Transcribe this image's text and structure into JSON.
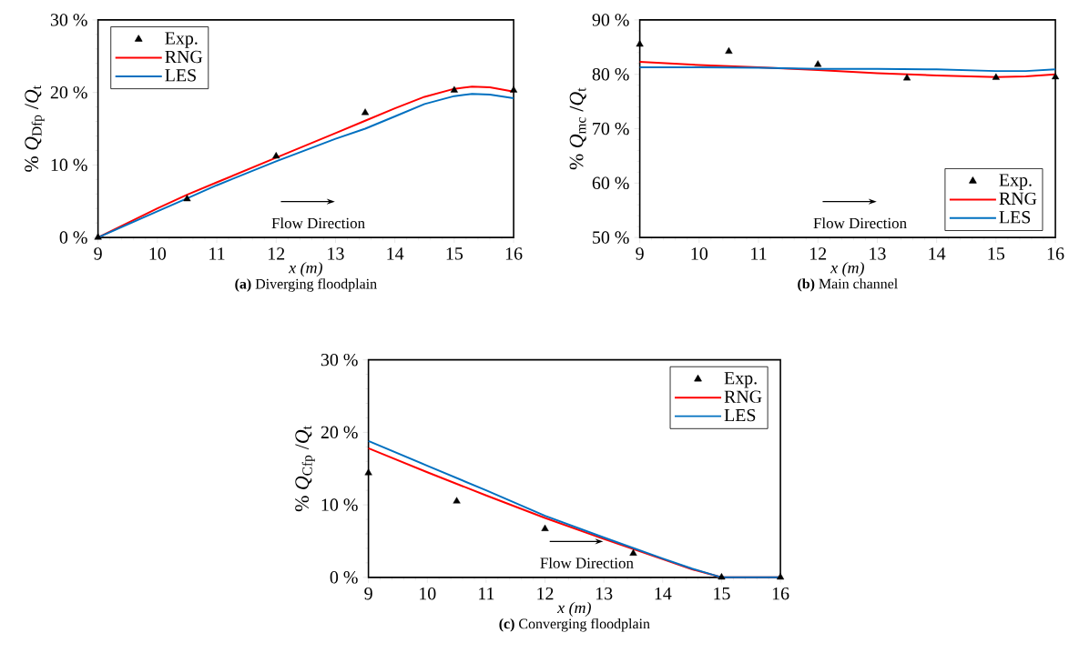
{
  "chart_data": [
    {
      "type": "line",
      "title": "**(a)** Diverging floodplain",
      "xlabel": "x (m)",
      "ylabel": "% *Q*$_{Dfp}$ /*Q*$_{t}$",
      "annotations": [
        "Flow Direction"
      ],
      "legend": "top left",
      "xlim": [
        9,
        16
      ],
      "xticks": [
        9,
        10,
        11,
        12,
        13,
        14,
        15,
        16
      ],
      "ylim": [
        0,
        30
      ],
      "yticks": [
        {
          "value": 0,
          "label": "0 %"
        },
        {
          "value": 10,
          "label": "10 %"
        },
        {
          "value": 20,
          "label": "20 %"
        },
        {
          "value": 30,
          "label": "30 %"
        }
      ],
      "series": [
        {
          "name": "Exp.",
          "type": "scatter",
          "marker": "triangle",
          "color": "#000000",
          "x": [
            9,
            10.5,
            12,
            13.5,
            15,
            16
          ],
          "values": [
            0,
            5.3,
            11.2,
            17.2,
            20.3,
            20.3
          ]
        },
        {
          "name": "RNG",
          "type": "line",
          "color": "#ff0000",
          "x": [
            9,
            10,
            10.5,
            11,
            12,
            13,
            13.5,
            14,
            14.5,
            15,
            15.3,
            15.6,
            16
          ],
          "values": [
            0,
            4,
            5.9,
            7.6,
            11,
            14.4,
            16.1,
            17.8,
            19.4,
            20.5,
            20.8,
            20.7,
            20.1
          ]
        },
        {
          "name": "LES",
          "type": "line",
          "color": "#0070c0",
          "x": [
            9,
            10,
            10.5,
            11,
            12,
            13,
            13.5,
            14,
            14.5,
            15,
            15.3,
            15.6,
            16
          ],
          "values": [
            0,
            3.6,
            5.4,
            7.2,
            10.5,
            13.6,
            15.0,
            16.7,
            18.4,
            19.5,
            19.8,
            19.7,
            19.2
          ]
        }
      ]
    },
    {
      "type": "line",
      "title": "**(b)** Main channel",
      "xlabel": "x (m)",
      "ylabel": "% *Q*$_{mc}$ /*Q*$_{t}$",
      "annotations": [
        "Flow Direction"
      ],
      "legend": "bottom right",
      "xlim": [
        9,
        16
      ],
      "xticks": [
        9,
        10,
        11,
        12,
        13,
        14,
        15,
        16
      ],
      "ylim": [
        50,
        90
      ],
      "yticks": [
        {
          "value": 50,
          "label": "50 %"
        },
        {
          "value": 60,
          "label": "60 %"
        },
        {
          "value": 70,
          "label": "70 %"
        },
        {
          "value": 80,
          "label": "80 %"
        },
        {
          "value": 90,
          "label": "90 %"
        }
      ],
      "series": [
        {
          "name": "Exp.",
          "type": "scatter",
          "marker": "triangle",
          "color": "#000000",
          "x": [
            9,
            10.5,
            12,
            13.5,
            15,
            16
          ],
          "values": [
            85.5,
            84.2,
            81.8,
            79.3,
            79.4,
            79.5
          ]
        },
        {
          "name": "RNG",
          "type": "line",
          "color": "#ff0000",
          "x": [
            9,
            10,
            11,
            12,
            13,
            14,
            15,
            15.5,
            16
          ],
          "values": [
            82.3,
            81.7,
            81.3,
            80.8,
            80.2,
            79.8,
            79.5,
            79.6,
            80.0
          ]
        },
        {
          "name": "LES",
          "type": "line",
          "color": "#0070c0",
          "x": [
            9,
            10,
            11,
            12,
            13,
            14,
            15,
            15.5,
            16
          ],
          "values": [
            81.3,
            81.3,
            81.2,
            81.0,
            81.0,
            80.9,
            80.6,
            80.6,
            80.9
          ]
        }
      ]
    },
    {
      "type": "line",
      "title": "**(c)** Converging floodplain",
      "xlabel": "x (m)",
      "ylabel": "% *Q*$_{Cfp}$ /*Q*$_{t}$",
      "annotations": [
        "Flow Direction"
      ],
      "legend": "top right",
      "xlim": [
        9,
        16
      ],
      "xticks": [
        9,
        10,
        11,
        12,
        13,
        14,
        15,
        16
      ],
      "ylim": [
        0,
        30
      ],
      "yticks": [
        {
          "value": 0,
          "label": "0 %"
        },
        {
          "value": 10,
          "label": "10 %"
        },
        {
          "value": 20,
          "label": "20 %"
        },
        {
          "value": 30,
          "label": "30 %"
        }
      ],
      "series": [
        {
          "name": "Exp.",
          "type": "scatter",
          "marker": "triangle",
          "color": "#000000",
          "x": [
            9,
            10.5,
            12,
            13.5,
            15,
            16
          ],
          "values": [
            14.4,
            10.5,
            6.7,
            3.3,
            0,
            0
          ]
        },
        {
          "name": "RNG",
          "type": "line",
          "color": "#ff0000",
          "x": [
            9,
            10,
            11,
            12,
            13,
            14,
            14.5,
            15,
            16
          ],
          "values": [
            17.8,
            14.5,
            11.3,
            8.2,
            5.3,
            2.5,
            1.1,
            0,
            0
          ]
        },
        {
          "name": "LES",
          "type": "line",
          "color": "#0070c0",
          "x": [
            9,
            10,
            11,
            12,
            13,
            14,
            14.5,
            15,
            16
          ],
          "values": [
            18.8,
            15.4,
            12.0,
            8.5,
            5.5,
            2.6,
            1.2,
            0,
            0
          ]
        }
      ]
    }
  ]
}
